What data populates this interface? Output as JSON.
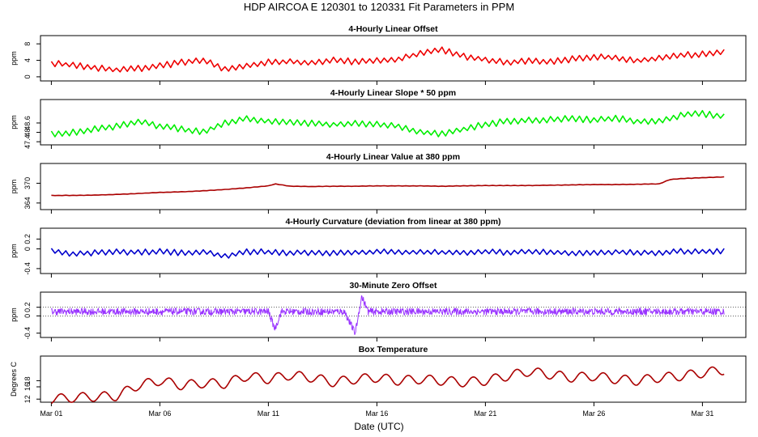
{
  "title": "HDP   AIRCOA E   120301 to 120331   Fit Parameters in PPM",
  "xlabel": "Date (UTC)",
  "x_ticks": [
    {
      "day": 1,
      "label": "Mar 01"
    },
    {
      "day": 6,
      "label": "Mar 06"
    },
    {
      "day": 11,
      "label": "Mar 11"
    },
    {
      "day": 16,
      "label": "Mar 16"
    },
    {
      "day": 21,
      "label": "Mar 21"
    },
    {
      "day": 26,
      "label": "Mar 26"
    },
    {
      "day": 31,
      "label": "Mar 31"
    }
  ],
  "chart_data": [
    {
      "type": "line",
      "title": "4-Hourly Linear Offset",
      "ylabel": "ppm",
      "color": "#ee0000",
      "xlim": [
        0.5,
        33.0
      ],
      "ylim": [
        -1,
        10
      ],
      "yticks": [
        0,
        4,
        8
      ],
      "step_hours": 4,
      "amp": 0.8,
      "x": [
        1,
        2,
        3,
        4,
        5,
        6,
        7,
        8,
        9,
        10,
        11,
        12,
        13,
        14,
        15,
        16,
        17,
        18,
        19,
        20,
        21,
        22,
        23,
        24,
        25,
        26,
        27,
        28,
        29,
        30,
        31,
        32
      ],
      "values": [
        3.3,
        2.8,
        2.2,
        1.6,
        2.0,
        2.6,
        3.5,
        4.0,
        1.8,
        2.8,
        3.5,
        3.7,
        3.3,
        4.0,
        3.7,
        3.9,
        4.3,
        5.7,
        6.5,
        5.0,
        4.2,
        3.5,
        3.8,
        3.6,
        4.3,
        4.8,
        4.7,
        3.9,
        4.5,
        5.2,
        5.5,
        6.0
      ]
    },
    {
      "type": "line",
      "title": "4-Hourly Linear Slope * 50 ppm",
      "ylabel": "ppm",
      "color": "#00ee00",
      "xlim": [
        0.5,
        33.0
      ],
      "ylim": [
        47.2,
        50.1
      ],
      "yticks": [
        47.4,
        48.0,
        48.6
      ],
      "step_hours": 4,
      "amp": 0.22,
      "x": [
        1,
        2,
        3,
        4,
        5,
        6,
        7,
        8,
        9,
        10,
        11,
        12,
        13,
        14,
        15,
        16,
        17,
        18,
        19,
        20,
        21,
        22,
        23,
        24,
        25,
        26,
        27,
        28,
        29,
        30,
        31,
        32
      ],
      "values": [
        47.9,
        48.0,
        48.2,
        48.4,
        48.7,
        48.4,
        48.2,
        48.0,
        48.6,
        48.9,
        48.7,
        48.6,
        48.6,
        48.5,
        48.6,
        48.5,
        48.4,
        48.0,
        47.9,
        48.2,
        48.5,
        48.7,
        48.8,
        48.8,
        48.9,
        48.8,
        48.9,
        48.7,
        48.7,
        49.1,
        49.2,
        49.0
      ]
    },
    {
      "type": "line",
      "title": "4-Hourly Linear Value at 380 ppm",
      "ylabel": "ppm",
      "color": "#aa0000",
      "xlim": [
        0.5,
        33.0
      ],
      "ylim": [
        362.0,
        376.0
      ],
      "yticks": [
        364,
        370
      ],
      "step_hours": 4,
      "amp": 0.06,
      "x": [
        1,
        2,
        3,
        4,
        5,
        6,
        7,
        8,
        9,
        10,
        11,
        11.3,
        12,
        13,
        14,
        15,
        16,
        17,
        18,
        19,
        20,
        21,
        22,
        23,
        24,
        25,
        26,
        27,
        28,
        29,
        29.5,
        30,
        31,
        32
      ],
      "values": [
        366.3,
        366.3,
        366.4,
        366.6,
        366.9,
        367.2,
        367.4,
        367.7,
        368.1,
        368.6,
        369.2,
        369.8,
        369.1,
        369.0,
        369.1,
        369.1,
        369.2,
        369.2,
        369.2,
        369.1,
        369.2,
        369.3,
        369.3,
        369.3,
        369.4,
        369.5,
        369.6,
        369.6,
        369.7,
        369.8,
        371.1,
        371.4,
        371.7,
        371.9
      ]
    },
    {
      "type": "line",
      "title": "4-Hourly Curvature (deviation from linear at 380 ppm)",
      "ylabel": "ppm",
      "color": "#0000cc",
      "xlim": [
        0.5,
        33.0
      ],
      "ylim": [
        -0.5,
        0.42
      ],
      "yticks": [
        -0.4,
        0.0,
        0.2
      ],
      "step_hours": 4,
      "amp": 0.06,
      "x": [
        1,
        2,
        3,
        4,
        5,
        6,
        7,
        8,
        9,
        10,
        11,
        12,
        13,
        14,
        15,
        16,
        17,
        18,
        19,
        20,
        21,
        22,
        23,
        24,
        25,
        26,
        27,
        28,
        29,
        30,
        31,
        32
      ],
      "values": [
        -0.03,
        -0.1,
        -0.08,
        -0.06,
        -0.07,
        -0.05,
        -0.08,
        -0.06,
        -0.15,
        -0.06,
        -0.06,
        -0.08,
        -0.07,
        -0.09,
        -0.07,
        -0.06,
        -0.07,
        -0.06,
        -0.07,
        -0.07,
        -0.06,
        -0.07,
        -0.06,
        -0.06,
        -0.08,
        -0.09,
        -0.06,
        -0.07,
        -0.08,
        -0.05,
        -0.06,
        -0.04
      ]
    },
    {
      "type": "line",
      "title": "30-Minute Zero Offset",
      "ylabel": "ppm",
      "color": "#9933ff",
      "xlim": [
        0.5,
        33.0
      ],
      "ylim": [
        -0.5,
        0.55
      ],
      "yticks": [
        -0.4,
        0.0,
        0.2
      ],
      "step_hours": 0.5,
      "amp": 0.08,
      "x": [
        1,
        2,
        3,
        4,
        5,
        6,
        7,
        8,
        9,
        10,
        11,
        11.3,
        11.6,
        12,
        13,
        14,
        14.5,
        15.0,
        15.3,
        15.6,
        16,
        17,
        18,
        19,
        20,
        21,
        22,
        23,
        24,
        25,
        26,
        27,
        28,
        29,
        30,
        31,
        32
      ],
      "values": [
        0.1,
        0.1,
        0.1,
        0.1,
        0.1,
        0.1,
        0.1,
        0.1,
        0.1,
        0.1,
        0.1,
        -0.3,
        0.1,
        0.1,
        0.1,
        0.1,
        0.1,
        -0.4,
        0.45,
        0.1,
        0.1,
        0.1,
        0.1,
        0.1,
        0.1,
        0.1,
        0.1,
        0.1,
        0.1,
        0.1,
        0.1,
        0.1,
        0.1,
        0.1,
        0.1,
        0.1,
        0.1
      ],
      "reference_lines": [
        0.0,
        0.2
      ]
    },
    {
      "type": "line",
      "title": "Box Temperature",
      "ylabel": "Degrees C",
      "color": "#aa0000",
      "xlim": [
        0.5,
        33.0
      ],
      "ylim": [
        11.0,
        26.0
      ],
      "yticks": [
        12,
        16,
        18
      ],
      "step_hours": 1,
      "amp": 1.5,
      "x": [
        1,
        2,
        3,
        4,
        5,
        6,
        7,
        8,
        9,
        10,
        11,
        12,
        13,
        14,
        15,
        16,
        17,
        18,
        19,
        20,
        21,
        22,
        23,
        24,
        25,
        26,
        27,
        28,
        29,
        30,
        31,
        32
      ],
      "values": [
        12.0,
        12.5,
        12.8,
        13.0,
        16.5,
        18.0,
        16.5,
        17.2,
        17.0,
        19.5,
        18.5,
        19.8,
        19.0,
        17.5,
        18.5,
        19.0,
        18.0,
        18.5,
        18.0,
        17.5,
        18.0,
        19.5,
        21.0,
        20.0,
        19.0,
        19.5,
        18.5,
        18.0,
        19.0,
        19.5,
        20.5,
        21.5
      ]
    }
  ]
}
